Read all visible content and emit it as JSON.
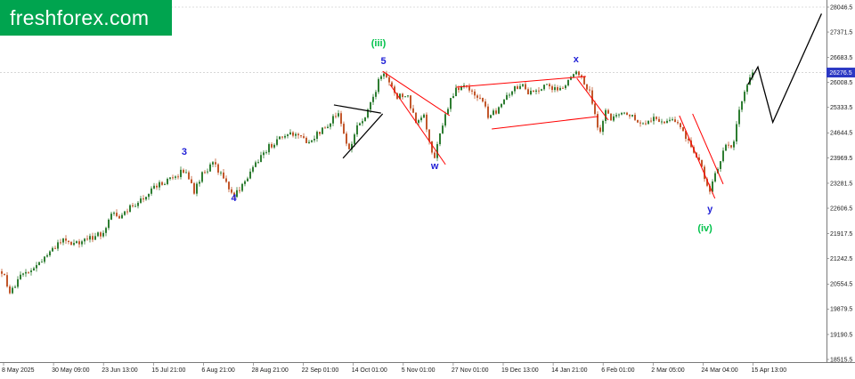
{
  "logo": {
    "text": "freshforex.com"
  },
  "colors": {
    "logo_bg": "#00a44f",
    "logo_text": "#ffffff",
    "axis_line": "#7a7a7a",
    "tick_text": "#1a1a1a",
    "grid": "#d4d4d4",
    "up_candle": "#2e7d32",
    "down_candle": "#c2572b",
    "trend_red": "#ff0000",
    "trend_black": "#000000",
    "wave_blue": "#1f1fd6",
    "wave_green": "#00c24b",
    "price_tag_bg": "#2b38c4",
    "price_tag_text": "#ffffff"
  },
  "chart_data": {
    "type": "candlestick",
    "current_price": 26276.5,
    "current_price_label": "26276.5",
    "y_axis": {
      "ticks": [
        28046.5,
        27371.5,
        26683.5,
        26008.5,
        25333.5,
        24644.5,
        23969.5,
        23281.5,
        22606.5,
        21917.5,
        21242.5,
        20554.5,
        19879.5,
        19190.5,
        18515.5
      ]
    },
    "x_axis": {
      "ticks": [
        "8 May 2025",
        "30 May 09:00",
        "23 Jun 13:00",
        "15 Jul 21:00",
        "6 Aug 21:00",
        "28 Aug 21:00",
        "22 Sep 01:00",
        "14 Oct 01:00",
        "5 Nov 01:00",
        "27 Nov 01:00",
        "19 Dec 13:00",
        "14 Jan 21:00",
        "6 Feb 01:00",
        "2 Mar 05:00",
        "24 Mar 04:00",
        "15 Apr 13:00"
      ]
    },
    "gridline_prices": [
      28046.5
    ],
    "price_path": [
      [
        0.0,
        20900
      ],
      [
        0.012,
        20300
      ],
      [
        0.027,
        20800
      ],
      [
        0.045,
        21020
      ],
      [
        0.063,
        21380
      ],
      [
        0.081,
        21740
      ],
      [
        0.098,
        21620
      ],
      [
        0.116,
        21790
      ],
      [
        0.134,
        21930
      ],
      [
        0.146,
        22460
      ],
      [
        0.158,
        22340
      ],
      [
        0.175,
        22700
      ],
      [
        0.191,
        22940
      ],
      [
        0.201,
        23180
      ],
      [
        0.217,
        23300
      ],
      [
        0.23,
        23430
      ],
      [
        0.244,
        23670
      ],
      [
        0.256,
        23060
      ],
      [
        0.268,
        23550
      ],
      [
        0.282,
        23790
      ],
      [
        0.296,
        23430
      ],
      [
        0.309,
        22940
      ],
      [
        0.324,
        23310
      ],
      [
        0.341,
        23910
      ],
      [
        0.356,
        24270
      ],
      [
        0.371,
        24510
      ],
      [
        0.389,
        24630
      ],
      [
        0.406,
        24390
      ],
      [
        0.422,
        24630
      ],
      [
        0.436,
        24870
      ],
      [
        0.448,
        25230
      ],
      [
        0.462,
        24150
      ],
      [
        0.472,
        24750
      ],
      [
        0.486,
        25110
      ],
      [
        0.498,
        25800
      ],
      [
        0.507,
        26350
      ],
      [
        0.517,
        25950
      ],
      [
        0.527,
        25590
      ],
      [
        0.539,
        25710
      ],
      [
        0.552,
        24870
      ],
      [
        0.562,
        25110
      ],
      [
        0.575,
        23900
      ],
      [
        0.584,
        24630
      ],
      [
        0.594,
        25350
      ],
      [
        0.604,
        25830
      ],
      [
        0.616,
        25880
      ],
      [
        0.628,
        25710
      ],
      [
        0.639,
        25590
      ],
      [
        0.648,
        25110
      ],
      [
        0.658,
        25230
      ],
      [
        0.668,
        25590
      ],
      [
        0.68,
        25830
      ],
      [
        0.692,
        25950
      ],
      [
        0.703,
        25710
      ],
      [
        0.714,
        25830
      ],
      [
        0.725,
        25950
      ],
      [
        0.737,
        25830
      ],
      [
        0.749,
        25950
      ],
      [
        0.761,
        26190
      ],
      [
        0.768,
        26310
      ],
      [
        0.776,
        25950
      ],
      [
        0.783,
        25830
      ],
      [
        0.79,
        25110
      ],
      [
        0.796,
        24630
      ],
      [
        0.803,
        25230
      ],
      [
        0.812,
        24990
      ],
      [
        0.821,
        25110
      ],
      [
        0.831,
        25230
      ],
      [
        0.841,
        25110
      ],
      [
        0.851,
        24870
      ],
      [
        0.86,
        24990
      ],
      [
        0.871,
        25110
      ],
      [
        0.88,
        24930
      ],
      [
        0.89,
        25050
      ],
      [
        0.899,
        24870
      ],
      [
        0.908,
        24630
      ],
      [
        0.917,
        24390
      ],
      [
        0.927,
        23910
      ],
      [
        0.935,
        23550
      ],
      [
        0.942,
        22990
      ],
      [
        0.949,
        23430
      ],
      [
        0.956,
        23790
      ],
      [
        0.965,
        24390
      ],
      [
        0.973,
        24270
      ],
      [
        0.981,
        25110
      ],
      [
        0.989,
        25710
      ],
      [
        1.0,
        26276.5
      ]
    ],
    "wave_labels": [
      {
        "text": "3",
        "color": "#1f1fd6",
        "x": 0.223,
        "price": 24150
      },
      {
        "text": "4",
        "color": "#1f1fd6",
        "x": 0.283,
        "price": 22890
      },
      {
        "text": "(iii)",
        "color": "#00c24b",
        "x": 0.458,
        "price": 27080
      },
      {
        "text": "5",
        "color": "#1f1fd6",
        "x": 0.464,
        "price": 26600
      },
      {
        "text": "w",
        "color": "#1f1fd6",
        "x": 0.526,
        "price": 23760
      },
      {
        "text": "x",
        "color": "#1f1fd6",
        "x": 0.697,
        "price": 26650
      },
      {
        "text": "y",
        "color": "#1f1fd6",
        "x": 0.859,
        "price": 22600
      },
      {
        "text": "(iv)",
        "color": "#00c24b",
        "x": 0.853,
        "price": 22080
      }
    ],
    "trendlines": [
      {
        "x1": 0.404,
        "p1": 25400,
        "x2": 0.461,
        "p2": 25180,
        "color": "#000000"
      },
      {
        "x1": 0.415,
        "p1": 23960,
        "x2": 0.463,
        "p2": 25160,
        "color": "#000000"
      },
      {
        "x1": 0.463,
        "p1": 26310,
        "x2": 0.544,
        "p2": 25110,
        "color": "#ff0000"
      },
      {
        "x1": 0.472,
        "p1": 25950,
        "x2": 0.539,
        "p2": 23790,
        "color": "#ff0000"
      },
      {
        "x1": 0.552,
        "p1": 25880,
        "x2": 0.709,
        "p2": 26170,
        "color": "#ff0000"
      },
      {
        "x1": 0.595,
        "p1": 24750,
        "x2": 0.724,
        "p2": 25090,
        "color": "#ff0000"
      },
      {
        "x1": 0.698,
        "p1": 26120,
        "x2": 0.736,
        "p2": 24990,
        "color": "#ff0000"
      },
      {
        "x1": 0.822,
        "p1": 25110,
        "x2": 0.865,
        "p2": 22870,
        "color": "#ff0000"
      },
      {
        "x1": 0.838,
        "p1": 25160,
        "x2": 0.875,
        "p2": 23260,
        "color": "#ff0000"
      }
    ],
    "projection": {
      "color": "#000000",
      "points": [
        [
          0.905,
          25950
        ],
        [
          0.917,
          26430
        ],
        [
          0.935,
          24930
        ],
        [
          0.994,
          27870
        ]
      ]
    }
  }
}
